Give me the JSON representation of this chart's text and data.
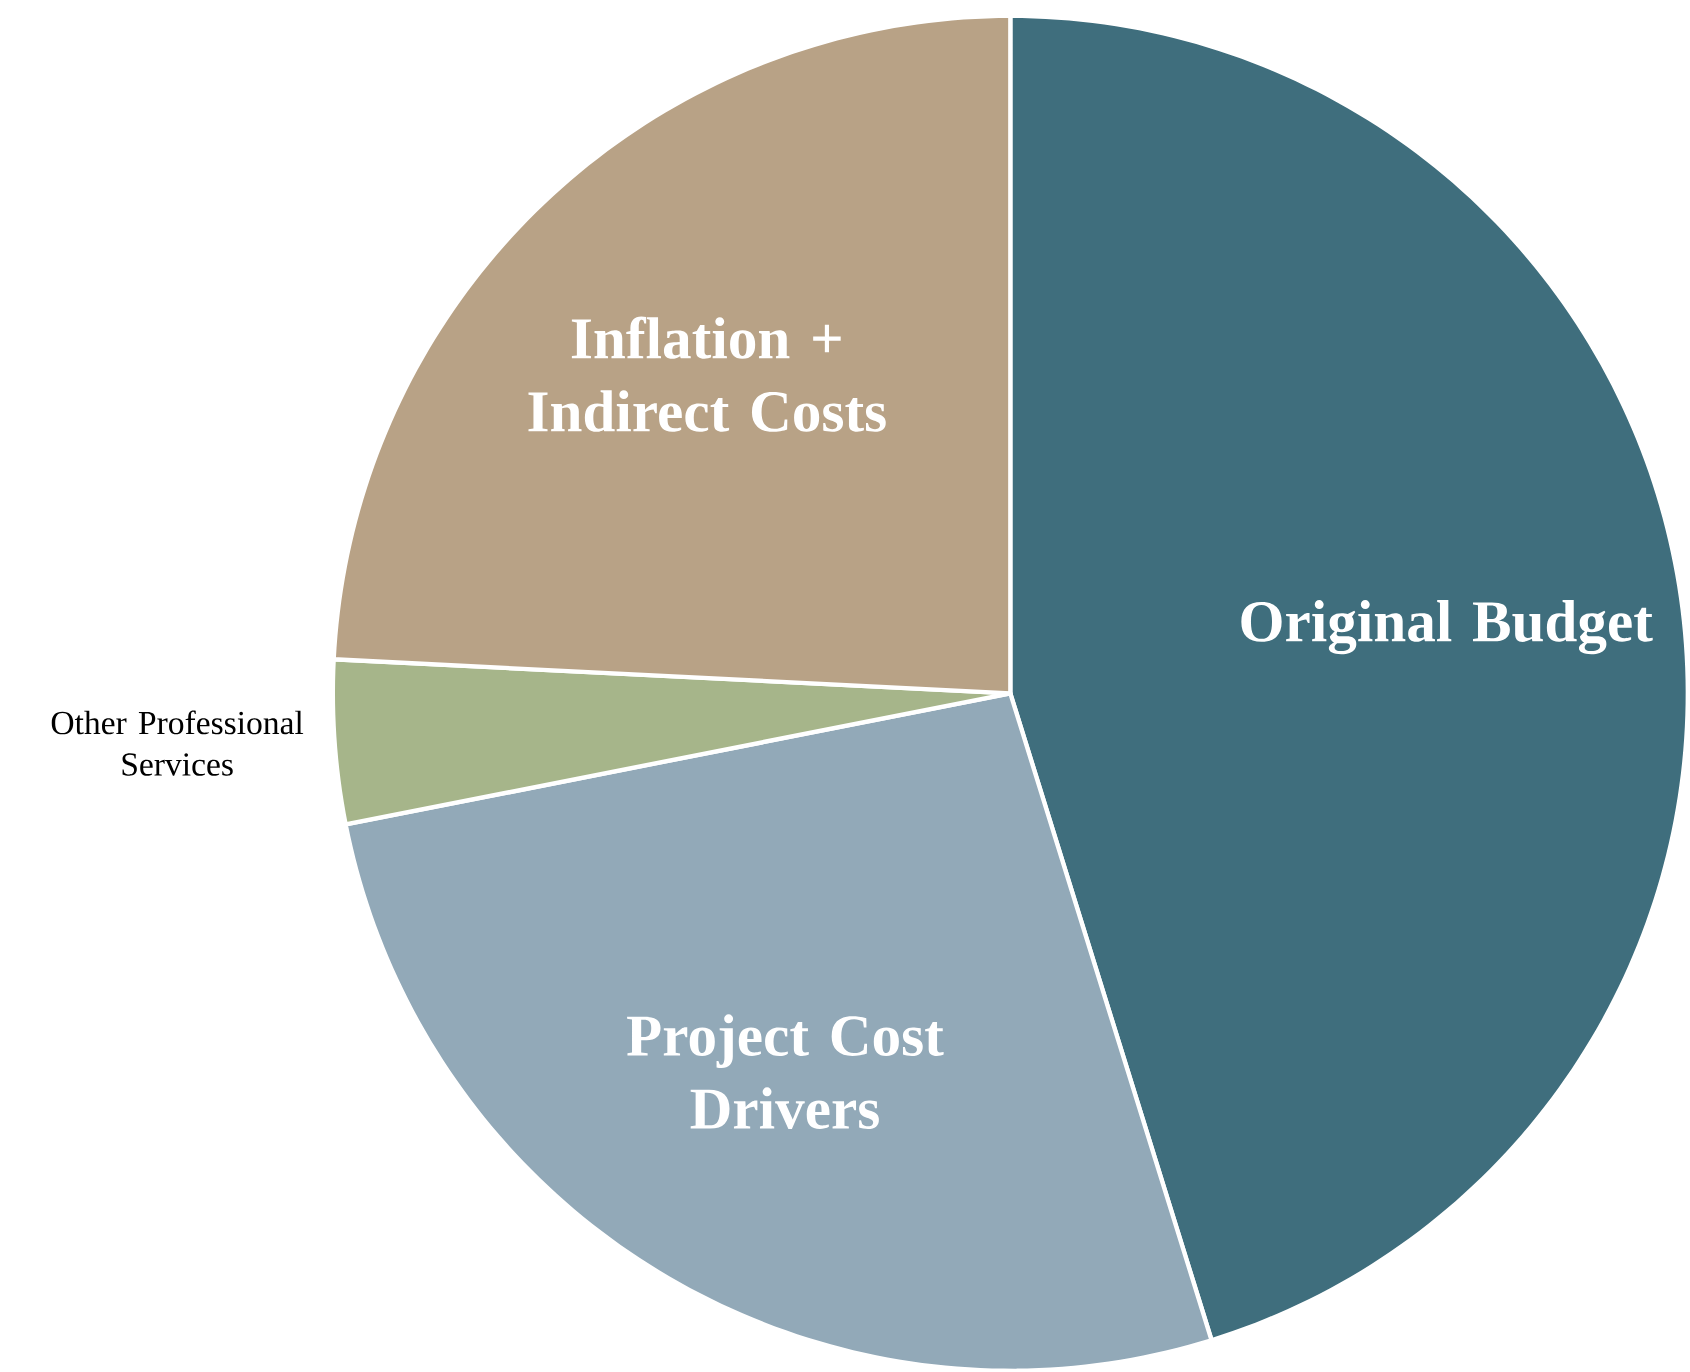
{
  "chart_data": {
    "type": "pie",
    "categories": [
      "Original Budget",
      "Project Cost Drivers",
      "Other Professional Services",
      "Inflation + Indirect Costs"
    ],
    "values": [
      45.2,
      26.7,
      3.9,
      24.2
    ],
    "colors": [
      "#3f6e7d",
      "#92a9b8",
      "#a6b58a",
      "#b8a286"
    ]
  }
}
